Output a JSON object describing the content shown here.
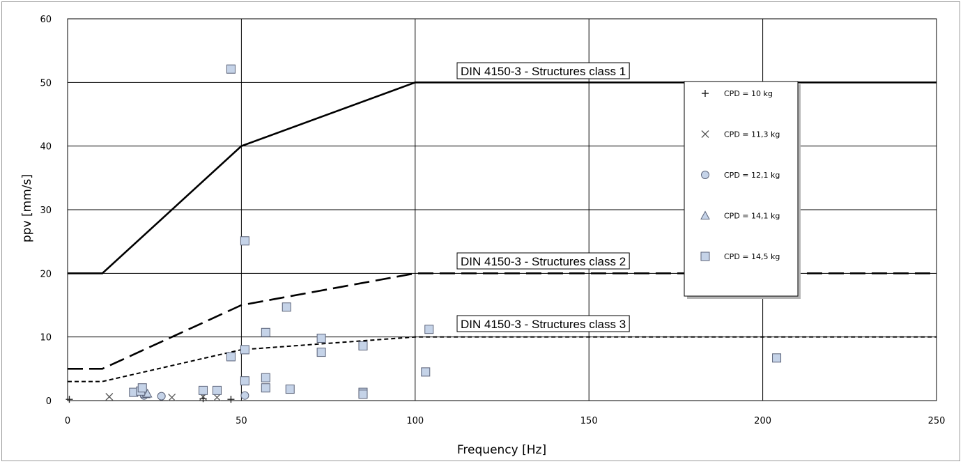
{
  "chart_data": {
    "type": "scatter",
    "title": "",
    "xlabel": "Frequency [Hz]",
    "ylabel": "ppv [mm/s]",
    "xlim": [
      0,
      250
    ],
    "ylim": [
      0,
      60
    ],
    "x_ticks": [
      0,
      50,
      100,
      150,
      200,
      250
    ],
    "y_ticks": [
      0,
      10,
      20,
      30,
      40,
      50,
      60
    ],
    "grid": true,
    "legend_position": "top-right",
    "limit_lines": [
      {
        "label": "DIN 4150-3 - Structures class 1",
        "style": "solid",
        "x": [
          0,
          10,
          50,
          100,
          250
        ],
        "y": [
          20,
          20,
          40,
          50,
          50
        ]
      },
      {
        "label": "DIN 4150-3 - Structures class 2",
        "style": "dashed",
        "x": [
          0,
          10,
          50,
          100,
          250
        ],
        "y": [
          5,
          5,
          15,
          20,
          20
        ]
      },
      {
        "label": "DIN 4150-3 - Structures class 3",
        "style": "dotted",
        "x": [
          0,
          10,
          50,
          100,
          250
        ],
        "y": [
          3,
          3,
          8,
          10,
          10
        ]
      }
    ],
    "series": [
      {
        "name": "CPD = 10 kg",
        "marker": "plus",
        "x": [
          0.5,
          39,
          47
        ],
        "y": [
          0.2,
          0.3,
          0.2
        ]
      },
      {
        "name": "CPD = 11,3 kg",
        "marker": "cross",
        "x": [
          12,
          30,
          39,
          43
        ],
        "y": [
          0.6,
          0.5,
          0.6,
          0.5
        ]
      },
      {
        "name": "CPD = 12,1 kg",
        "marker": "circle",
        "x": [
          22,
          27,
          51
        ],
        "y": [
          0.8,
          0.7,
          0.8
        ]
      },
      {
        "name": "CPD = 14,1 kg",
        "marker": "triangle",
        "x": [
          22.5,
          23
        ],
        "y": [
          1.0,
          1.1
        ]
      },
      {
        "name": "CPD = 14,5 kg",
        "marker": "square",
        "x": [
          19,
          21,
          21.5,
          39,
          43,
          47,
          47,
          51,
          51,
          51,
          57,
          57,
          57,
          63,
          64,
          73,
          73,
          85,
          85,
          85,
          103,
          104,
          204
        ],
        "y": [
          1.3,
          1.5,
          2.0,
          1.6,
          1.6,
          52.1,
          6.9,
          25.1,
          8.0,
          3.1,
          10.7,
          3.6,
          2.0,
          14.7,
          1.8,
          9.8,
          7.6,
          8.6,
          1.3,
          1.0,
          4.5,
          11.2,
          6.7
        ]
      }
    ]
  },
  "colors": {
    "line": "#000000",
    "grid": "#000000",
    "marker_fill": "#c5d3e8",
    "marker_stroke": "#5a6278",
    "frame": "#9a9a9a"
  }
}
